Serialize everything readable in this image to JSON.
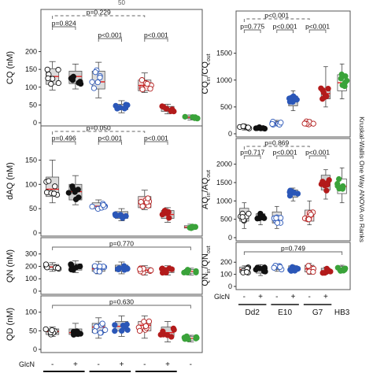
{
  "top_fragment": "50",
  "side_label": "Kruskal-Wallis One Way ANOVA on Ranks",
  "glcn_label": "GlcN",
  "strains": [
    "Dd2",
    "E10",
    "G7",
    "HB3"
  ],
  "glcn_signs": [
    "-",
    "+",
    "-",
    "+",
    "-",
    "+",
    "-"
  ],
  "colors": {
    "dd2_minus": "#ffffff",
    "dd2_plus": "#111111",
    "e10_minus": "#ffffff",
    "e10_plus": "#2b57b8",
    "g7_minus": "#ffffff",
    "g7_plus": "#b31b1b",
    "hb3": "#3aa33a",
    "box": "#d9d9d9",
    "median": "#e02020"
  },
  "chart_data": [
    {
      "type": "box",
      "panel": "CQ",
      "ylabel": "CQ (nM)",
      "yticks": [
        0,
        50,
        100,
        150,
        200
      ],
      "ylim": [
        0,
        230
      ],
      "groups": [
        "Dd2 -",
        "Dd2 +",
        "E10 -",
        "E10 +",
        "G7 -",
        "G7 +",
        "HB3"
      ],
      "medians": [
        130,
        130,
        115,
        45,
        105,
        40,
        15
      ],
      "q1": [
        108,
        110,
        95,
        37,
        90,
        32,
        12
      ],
      "q3": [
        152,
        145,
        145,
        52,
        120,
        46,
        18
      ],
      "whisker_low": [
        92,
        95,
        70,
        28,
        85,
        25,
        8
      ],
      "whisker_high": [
        172,
        165,
        170,
        62,
        140,
        52,
        22
      ],
      "annotations": [
        "p=0.229",
        "p=0.824",
        "p<0.001",
        "p<0.001"
      ]
    },
    {
      "type": "box",
      "panel": "QN",
      "ylabel": "dAQ (nM)",
      "yticks": [
        0,
        50,
        100,
        150
      ],
      "ylim": [
        0,
        175
      ],
      "groups": [
        "Dd2 -",
        "Dd2 +",
        "E10 -",
        "E10 +",
        "G7 -",
        "G7 +",
        "HB3"
      ],
      "medians": [
        90,
        85,
        55,
        38,
        60,
        38,
        12
      ],
      "q1": [
        75,
        68,
        50,
        30,
        52,
        30,
        10
      ],
      "q3": [
        115,
        100,
        62,
        44,
        75,
        46,
        15
      ],
      "whisker_low": [
        62,
        58,
        48,
        25,
        48,
        22,
        8
      ],
      "whisker_high": [
        150,
        118,
        68,
        50,
        88,
        52,
        18
      ],
      "annotations": [
        "p=0.050",
        "p=0.496",
        "p<0.001",
        "p<0.001"
      ]
    },
    {
      "type": "box",
      "panel": "QN",
      "ylabel": "QN (nM)",
      "yticks": [
        0,
        100,
        200,
        300
      ],
      "ylim": [
        0,
        330
      ],
      "groups": [
        "Dd2 -",
        "Dd2 +",
        "E10 -",
        "E10 +",
        "G7 -",
        "G7 +",
        "HB3"
      ],
      "medians": [
        195,
        195,
        180,
        180,
        170,
        170,
        160
      ],
      "q1": [
        175,
        170,
        160,
        160,
        150,
        150,
        145
      ],
      "q3": [
        215,
        220,
        210,
        210,
        190,
        190,
        175
      ],
      "whisker_low": [
        160,
        150,
        140,
        140,
        130,
        130,
        130
      ],
      "whisker_high": [
        230,
        245,
        240,
        235,
        205,
        205,
        185
      ],
      "annotations": [
        "p=0.770"
      ]
    },
    {
      "type": "box",
      "panel": "QD",
      "ylabel": "QD (nM)",
      "yticks": [
        0,
        50,
        100
      ],
      "ylim": [
        0,
        110
      ],
      "groups": [
        "Dd2 -",
        "Dd2 +",
        "E10 -",
        "E10 +",
        "G7 -",
        "G7 +",
        "HB3"
      ],
      "medians": [
        48,
        45,
        60,
        62,
        65,
        45,
        30
      ],
      "q1": [
        40,
        40,
        45,
        50,
        50,
        35,
        25
      ],
      "q3": [
        55,
        55,
        70,
        75,
        75,
        60,
        35
      ],
      "whisker_low": [
        35,
        35,
        30,
        35,
        30,
        20,
        20
      ],
      "whisker_high": [
        60,
        70,
        85,
        90,
        90,
        75,
        38
      ],
      "annotations": [
        "p=0.630"
      ]
    },
    {
      "type": "box",
      "panel": "CQ ratio",
      "ylabel_main": "CQ",
      "ylabel_sub1": "in",
      "ylabel_mid": "/CQ",
      "ylabel_sub2": "out",
      "yticks": [
        0,
        500,
        1000,
        1500
      ],
      "ylim": [
        0,
        1700
      ],
      "groups": [
        "Dd2 -",
        "Dd2 +",
        "E10 -",
        "E10 +",
        "G7 -",
        "G7 +",
        "HB3"
      ],
      "medians": [
        115,
        110,
        200,
        600,
        200,
        750,
        950
      ],
      "q1": [
        90,
        95,
        170,
        520,
        170,
        650,
        800
      ],
      "q3": [
        140,
        125,
        230,
        700,
        230,
        850,
        1100
      ],
      "whisker_low": [
        70,
        85,
        150,
        430,
        150,
        500,
        650
      ],
      "whisker_high": [
        170,
        140,
        250,
        800,
        260,
        1250,
        1300
      ],
      "annotations": [
        "p<0.001",
        "p=0.775",
        "p<0.001",
        "p<0.001"
      ]
    },
    {
      "type": "box",
      "panel": "AQ ratio",
      "ylabel_main": "AQ",
      "ylabel_sub1": "in",
      "ylabel_mid": "/AQ",
      "ylabel_sub2": "out",
      "yticks": [
        0,
        500,
        1000,
        1500,
        2000
      ],
      "ylim": [
        0,
        2100
      ],
      "groups": [
        "Dd2 -",
        "Dd2 +",
        "E10 -",
        "E10 +",
        "G7 -",
        "G7 +",
        "HB3"
      ],
      "medians": [
        600,
        550,
        550,
        1200,
        580,
        1500,
        1400
      ],
      "q1": [
        450,
        480,
        400,
        1100,
        450,
        1300,
        1200
      ],
      "q3": [
        800,
        650,
        700,
        1300,
        750,
        1700,
        1600
      ],
      "whisker_low": [
        250,
        350,
        250,
        1000,
        350,
        1050,
        950
      ],
      "whisker_high": [
        950,
        700,
        850,
        1350,
        1000,
        1850,
        1900
      ],
      "annotations": [
        "p=0.869",
        "p=0.717",
        "p<0.001",
        "p<0.001"
      ]
    },
    {
      "type": "box",
      "panel": "QN ratio",
      "ylabel_main": "QN",
      "ylabel_sub1": "in",
      "ylabel_mid": "/QN",
      "ylabel_sub2": "out",
      "yticks": [
        0,
        100,
        200
      ],
      "ylim": [
        0,
        260
      ],
      "groups": [
        "Dd2 -",
        "Dd2 +",
        "E10 -",
        "E10 +",
        "G7 -",
        "G7 +",
        "HB3"
      ],
      "medians": [
        140,
        140,
        155,
        150,
        145,
        130,
        150
      ],
      "q1": [
        115,
        110,
        140,
        130,
        120,
        110,
        130
      ],
      "q3": [
        160,
        165,
        170,
        170,
        175,
        150,
        165
      ],
      "whisker_low": [
        100,
        90,
        125,
        115,
        100,
        100,
        115
      ],
      "whisker_high": [
        170,
        180,
        180,
        175,
        190,
        160,
        175
      ],
      "annotations": [
        "p=0.749"
      ]
    }
  ]
}
